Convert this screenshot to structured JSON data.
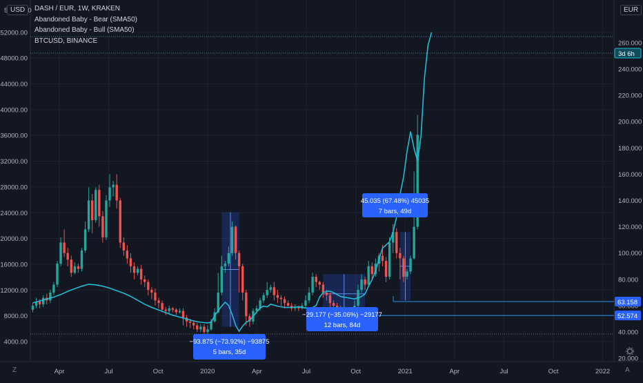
{
  "legend": {
    "main": "DASH / EUR, 1W, KRAKEN",
    "ind1": "Abandoned Baby - Bear (SMA50)",
    "ind2": "Abandoned Baby - Bull (SMA50)",
    "cmp": "BTCUSD, BINANCE"
  },
  "units": {
    "left": "USD",
    "right": "EUR"
  },
  "toolbar": {
    "left_icon": "Z",
    "right_icon": "A",
    "gear": "gear-icon"
  },
  "colors": {
    "bg": "#131722",
    "up": "#26a69a",
    "down": "#ef5350",
    "btc": "#22bcd6",
    "label": "#2962ff",
    "grid": "#1f232e"
  },
  "chart_data": {
    "type": "candlestick",
    "x_ticks": [
      "Apr",
      "Jul",
      "Oct",
      "2020",
      "Apr",
      "Jul",
      "Oct",
      "2021",
      "Apr",
      "Jul",
      "Oct",
      "2022"
    ],
    "left_axis": {
      "unit": "USD",
      "ticks": [
        "4000.00",
        "8000.00",
        "12000.00",
        "16000.00",
        "20000.00",
        "24000.00",
        "28000.00",
        "32000.00",
        "36000.00",
        "40000.00",
        "44000.00",
        "48000.00",
        "52000.00"
      ],
      "top_label": "56000.00"
    },
    "right_axis": {
      "unit": "EUR",
      "ticks": [
        "20.000",
        "40.000",
        "60.000",
        "80.000",
        "100.000",
        "120.000",
        "140.000",
        "160.000",
        "180.000",
        "200.000",
        "220.000",
        "240.000",
        "260.000"
      ]
    },
    "dash_candles": [
      [
        57,
        60,
        55,
        62
      ],
      [
        60,
        63,
        58,
        66
      ],
      [
        63,
        61,
        58,
        65
      ],
      [
        61,
        66,
        59,
        68
      ],
      [
        66,
        64,
        61,
        69
      ],
      [
        64,
        70,
        62,
        72
      ],
      [
        70,
        76,
        68,
        78
      ],
      [
        76,
        92,
        74,
        94
      ],
      [
        92,
        108,
        90,
        112
      ],
      [
        108,
        100,
        97,
        118
      ],
      [
        100,
        95,
        90,
        104
      ],
      [
        95,
        85,
        82,
        98
      ],
      [
        85,
        90,
        84,
        93
      ],
      [
        90,
        88,
        85,
        92
      ],
      [
        88,
        102,
        86,
        104
      ],
      [
        102,
        118,
        100,
        124
      ],
      [
        118,
        140,
        116,
        150
      ],
      [
        140,
        125,
        115,
        145
      ],
      [
        125,
        148,
        123,
        150
      ],
      [
        148,
        128,
        120,
        152
      ],
      [
        128,
        112,
        108,
        132
      ],
      [
        112,
        140,
        110,
        144
      ],
      [
        140,
        150,
        135,
        160
      ],
      [
        150,
        152,
        143,
        155
      ],
      [
        152,
        140,
        134,
        160
      ],
      [
        140,
        108,
        104,
        142
      ],
      [
        108,
        102,
        98,
        112
      ],
      [
        102,
        96,
        92,
        106
      ],
      [
        96,
        90,
        85,
        100
      ],
      [
        90,
        85,
        80,
        93
      ],
      [
        85,
        88,
        83,
        90
      ],
      [
        88,
        80,
        76,
        91
      ],
      [
        80,
        78,
        74,
        83
      ],
      [
        78,
        72,
        68,
        80
      ],
      [
        72,
        70,
        65,
        74
      ],
      [
        70,
        64,
        60,
        73
      ],
      [
        64,
        62,
        58,
        66
      ],
      [
        62,
        57,
        55,
        64
      ],
      [
        57,
        56,
        53,
        59
      ],
      [
        56,
        58,
        54,
        60
      ],
      [
        58,
        57,
        55,
        59
      ],
      [
        57,
        55,
        53,
        58
      ],
      [
        55,
        56,
        54,
        58
      ],
      [
        56,
        51,
        45,
        58
      ],
      [
        51,
        48,
        44,
        53
      ],
      [
        48,
        47,
        43,
        50
      ],
      [
        47,
        45,
        42,
        49
      ],
      [
        45,
        42,
        40,
        47
      ],
      [
        42,
        44,
        40,
        46
      ],
      [
        44,
        40,
        38,
        46
      ],
      [
        40,
        42,
        38,
        45
      ],
      [
        42,
        48,
        41,
        50
      ],
      [
        48,
        55,
        47,
        58
      ],
      [
        55,
        70,
        54,
        85
      ],
      [
        70,
        90,
        68,
        98
      ],
      [
        90,
        92,
        85,
        94
      ],
      [
        92,
        100,
        90,
        105
      ],
      [
        100,
        120,
        98,
        124
      ],
      [
        120,
        100,
        95,
        121
      ],
      [
        100,
        90,
        70,
        102
      ],
      [
        90,
        70,
        64,
        92
      ],
      [
        70,
        52,
        45,
        72
      ],
      [
        52,
        48,
        44,
        54
      ],
      [
        48,
        56,
        46,
        58
      ],
      [
        56,
        58,
        54,
        60
      ],
      [
        58,
        64,
        56,
        66
      ],
      [
        64,
        68,
        62,
        70
      ],
      [
        68,
        72,
        66,
        78
      ],
      [
        72,
        74,
        70,
        76
      ],
      [
        74,
        68,
        64,
        78
      ],
      [
        68,
        66,
        62,
        72
      ],
      [
        66,
        65,
        60,
        68
      ],
      [
        65,
        62,
        58,
        67
      ],
      [
        62,
        60,
        58,
        64
      ],
      [
        60,
        58,
        56,
        62
      ],
      [
        58,
        59,
        56,
        61
      ],
      [
        59,
        58,
        56,
        60
      ],
      [
        58,
        60,
        57,
        62
      ],
      [
        60,
        64,
        58,
        68
      ],
      [
        64,
        70,
        62,
        74
      ],
      [
        70,
        82,
        68,
        85
      ],
      [
        82,
        78,
        74,
        84
      ],
      [
        78,
        76,
        72,
        79
      ],
      [
        76,
        70,
        66,
        78
      ],
      [
        70,
        68,
        64,
        72
      ],
      [
        68,
        62,
        58,
        70
      ],
      [
        62,
        60,
        56,
        64
      ],
      [
        60,
        58,
        56,
        62
      ],
      [
        58,
        57,
        55,
        60
      ],
      [
        57,
        58,
        56,
        60
      ],
      [
        58,
        56,
        54,
        59
      ],
      [
        56,
        57,
        55,
        58
      ],
      [
        57,
        60,
        56,
        64
      ],
      [
        60,
        72,
        58,
        76
      ],
      [
        72,
        80,
        70,
        84
      ],
      [
        80,
        76,
        72,
        82
      ],
      [
        76,
        90,
        74,
        94
      ],
      [
        90,
        84,
        80,
        93
      ],
      [
        84,
        92,
        82,
        96
      ],
      [
        92,
        98,
        86,
        100
      ],
      [
        98,
        94,
        90,
        106
      ],
      [
        94,
        82,
        78,
        97
      ],
      [
        82,
        108,
        80,
        112
      ],
      [
        108,
        116,
        100,
        122
      ],
      [
        116,
        100,
        96,
        119
      ],
      [
        100,
        96,
        80,
        104
      ],
      [
        96,
        82,
        78,
        98
      ],
      [
        82,
        86,
        80,
        88
      ],
      [
        86,
        96,
        84,
        98
      ],
      [
        96,
        120,
        95,
        162
      ],
      [
        120,
        190,
        118,
        205
      ]
    ],
    "btcusd": [
      [
        0,
        10000
      ],
      [
        2,
        10300
      ],
      [
        4,
        10600
      ],
      [
        6,
        10900
      ],
      [
        8,
        11300
      ],
      [
        10,
        11800
      ],
      [
        12,
        12200
      ],
      [
        14,
        12600
      ],
      [
        16,
        12900
      ],
      [
        18,
        12800
      ],
      [
        20,
        12600
      ],
      [
        22,
        12300
      ],
      [
        24,
        11900
      ],
      [
        26,
        11500
      ],
      [
        28,
        11000
      ],
      [
        30,
        10400
      ],
      [
        32,
        9800
      ],
      [
        34,
        9300
      ],
      [
        36,
        8900
      ],
      [
        38,
        8500
      ],
      [
        40,
        8100
      ],
      [
        42,
        7800
      ],
      [
        44,
        7500
      ],
      [
        46,
        7200
      ],
      [
        48,
        7000
      ],
      [
        50,
        6900
      ],
      [
        51,
        7000
      ],
      [
        52,
        8000
      ],
      [
        53,
        8800
      ],
      [
        54,
        9500
      ],
      [
        55,
        10100
      ],
      [
        56,
        9600
      ],
      [
        57,
        8200
      ],
      [
        58,
        6500
      ],
      [
        59,
        5600
      ],
      [
        60,
        6400
      ],
      [
        61,
        7000
      ],
      [
        62,
        7300
      ],
      [
        63,
        7900
      ],
      [
        64,
        8600
      ],
      [
        65,
        9200
      ],
      [
        66,
        9500
      ],
      [
        67,
        9400
      ],
      [
        68,
        9800
      ],
      [
        70,
        9500
      ],
      [
        72,
        9300
      ],
      [
        74,
        9300
      ],
      [
        76,
        9400
      ],
      [
        78,
        9200
      ],
      [
        80,
        9300
      ],
      [
        81,
        9600
      ],
      [
        82,
        10900
      ],
      [
        83,
        11600
      ],
      [
        84,
        11800
      ],
      [
        85,
        11800
      ],
      [
        86,
        11600
      ],
      [
        88,
        11000
      ],
      [
        90,
        10800
      ],
      [
        92,
        10600
      ],
      [
        94,
        11000
      ],
      [
        95,
        11400
      ],
      [
        96,
        12600
      ],
      [
        97,
        13600
      ],
      [
        98,
        15000
      ],
      [
        99,
        16800
      ],
      [
        100,
        18500
      ],
      [
        101,
        19000
      ],
      [
        102,
        19500
      ],
      [
        103,
        21000
      ],
      [
        104,
        23300
      ],
      [
        105,
        26900
      ],
      [
        106,
        29500
      ],
      [
        107,
        33500
      ],
      [
        108,
        36600
      ],
      [
        109,
        34000
      ],
      [
        110,
        32000
      ],
      [
        111,
        36000
      ],
      [
        112,
        45000
      ],
      [
        113,
        50000
      ],
      [
        114,
        52000
      ]
    ],
    "last_prices": [
      {
        "label": "63.158",
        "value": 63.158
      },
      {
        "label": "52.574",
        "value": 52.574
      }
    ],
    "btc_last_label": "3d 6h",
    "measurements": [
      {
        "line1": "45.035 (67.48%) 45035",
        "line2": "7 bars, 49d"
      },
      {
        "line1": "−93.875 (−73.92%) −93875",
        "line2": "5 bars, 35d"
      },
      {
        "line1": "−29.177 (−35.06%) −29177",
        "line2": "12 bars, 84d"
      }
    ]
  }
}
